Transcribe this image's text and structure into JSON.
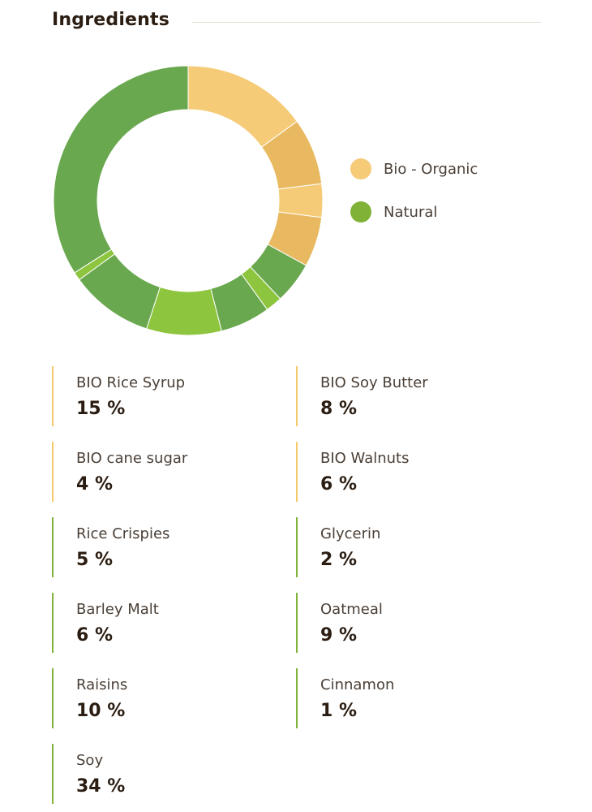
{
  "header": {
    "title": "Ingredients"
  },
  "legend": [
    {
      "label": "Bio - Organic",
      "color": "#f5cb78"
    },
    {
      "label": "Natural",
      "color": "#7fb236"
    }
  ],
  "chart_data": {
    "type": "pie",
    "title": "Ingredients",
    "categories": [
      "BIO Rice Syrup",
      "BIO Soy Butter",
      "BIO cane sugar",
      "BIO Walnuts",
      "Rice Crispies",
      "Glycerin",
      "Barley Malt",
      "Oatmeal",
      "Raisins",
      "Cinnamon",
      "Soy"
    ],
    "values": [
      15,
      8,
      4,
      6,
      5,
      2,
      6,
      9,
      10,
      1,
      34
    ],
    "groups": [
      "Bio - Organic",
      "Bio - Organic",
      "Bio - Organic",
      "Bio - Organic",
      "Natural",
      "Natural",
      "Natural",
      "Natural",
      "Natural",
      "Natural",
      "Natural"
    ],
    "colors": [
      "#f5cb78",
      "#e8b960",
      "#f5cb78",
      "#e8b960",
      "#6aa84f",
      "#8dc53e",
      "#6aa84f",
      "#8dc53e",
      "#6aa84f",
      "#8dc53e",
      "#6aa84f"
    ],
    "legend": [
      "Bio - Organic",
      "Natural"
    ],
    "legend_position": "right"
  },
  "ingredients": [
    {
      "name": "BIO Rice Syrup",
      "percent": "15 %",
      "group": "Bio - Organic"
    },
    {
      "name": "BIO Soy Butter",
      "percent": "8 %",
      "group": "Bio - Organic"
    },
    {
      "name": "BIO cane sugar",
      "percent": "4 %",
      "group": "Bio - Organic"
    },
    {
      "name": "BIO Walnuts",
      "percent": "6 %",
      "group": "Bio - Organic"
    },
    {
      "name": "Rice Crispies",
      "percent": "5 %",
      "group": "Natural"
    },
    {
      "name": "Glycerin",
      "percent": "2 %",
      "group": "Natural"
    },
    {
      "name": "Barley Malt",
      "percent": "6 %",
      "group": "Natural"
    },
    {
      "name": "Oatmeal",
      "percent": "9 %",
      "group": "Natural"
    },
    {
      "name": "Raisins",
      "percent": "10 %",
      "group": "Natural"
    },
    {
      "name": "Cinnamon",
      "percent": "1 %",
      "group": "Natural"
    },
    {
      "name": "Soy",
      "percent": "34 %",
      "group": "Natural"
    }
  ],
  "colors": {
    "organic_border": "#f5c86a",
    "natural_border": "#7fb236"
  }
}
